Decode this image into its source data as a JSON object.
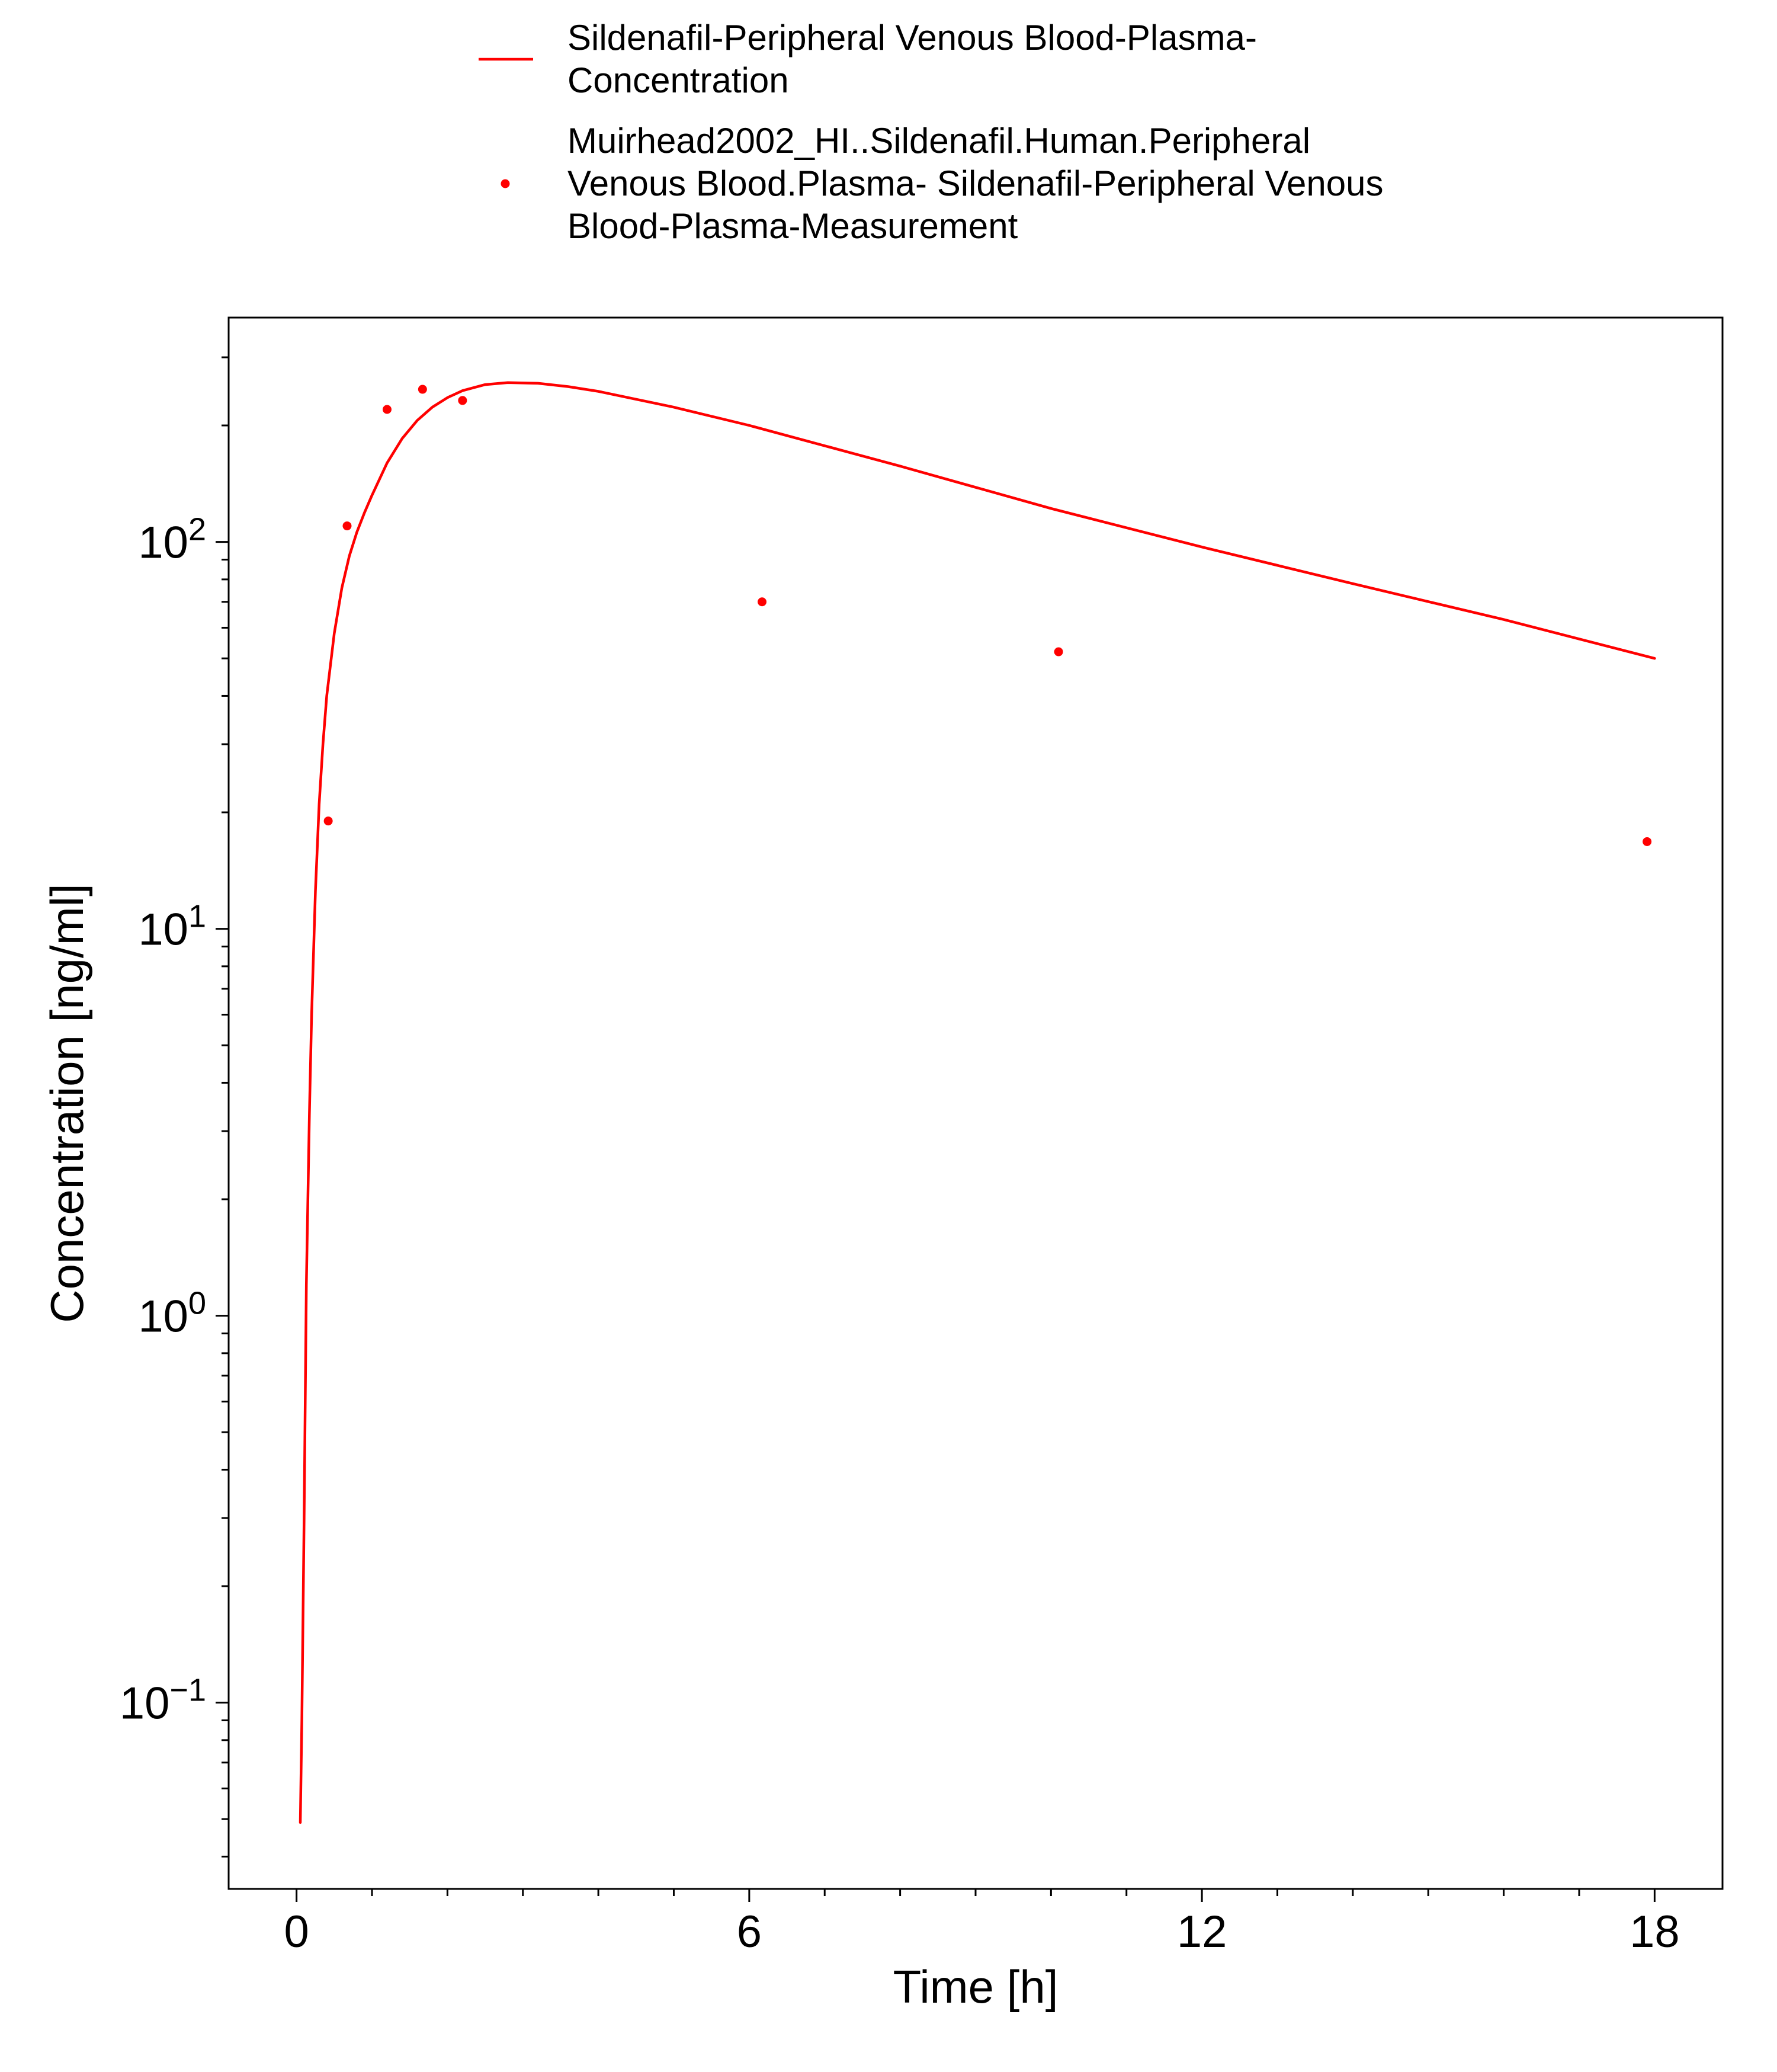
{
  "chart_data": {
    "type": "line",
    "xlabel": "Time [h]",
    "ylabel": "Concentration [ng/ml]",
    "xlim": [
      -0.9,
      18.9
    ],
    "ylim": [
      0.033,
      380
    ],
    "yscale": "log",
    "x_ticks": [
      0,
      6,
      12,
      18
    ],
    "x_tick_labels": [
      "0",
      "6",
      "12",
      "18"
    ],
    "y_ticks": [
      0.1,
      1,
      10,
      100
    ],
    "y_tick_labels": [
      {
        "base": "10",
        "exp": "−1"
      },
      {
        "base": "10",
        "exp": "0"
      },
      {
        "base": "10",
        "exp": "1"
      },
      {
        "base": "10",
        "exp": "2"
      }
    ],
    "grid": false,
    "legend_position": "top",
    "series": [
      {
        "name": "Sildenafil-Peripheral Venous Blood-Plasma-Concentration",
        "legend_lines": [
          "Sildenafil-Peripheral Venous Blood-Plasma-",
          "Concentration"
        ],
        "kind": "line",
        "color": "#ff0000",
        "x": [
          0.05,
          0.07,
          0.1,
          0.13,
          0.17,
          0.2,
          0.25,
          0.3,
          0.35,
          0.4,
          0.5,
          0.6,
          0.7,
          0.8,
          0.9,
          1.0,
          1.2,
          1.4,
          1.6,
          1.8,
          2.0,
          2.2,
          2.5,
          2.8,
          3.2,
          3.6,
          4.0,
          5.0,
          6.0,
          8.0,
          10.0,
          12.0,
          14.0,
          16.0,
          18.0
        ],
        "y": [
          0.049,
          0.09,
          0.3,
          1.2,
          3.3,
          6.0,
          12.5,
          21.0,
          30.0,
          40.0,
          58.0,
          76.0,
          92.0,
          106.0,
          119.0,
          132.0,
          160.0,
          185.0,
          206.0,
          223.0,
          236.0,
          246.0,
          255.0,
          258.0,
          257.0,
          252.0,
          245.0,
          223.0,
          200.0,
          157.0,
          122.0,
          97.0,
          78.0,
          63.0,
          50.0
        ]
      },
      {
        "name": "Muirhead2002_HI..Sildenafil.Human.Peripheral Venous Blood.Plasma- Sildenafil-Peripheral Venous Blood-Plasma-Measurement",
        "legend_lines": [
          "Muirhead2002_HI..Sildenafil.Human.Peripheral",
          "Venous Blood.Plasma- Sildenafil-Peripheral Venous",
          "Blood-Plasma-Measurement"
        ],
        "kind": "scatter",
        "color": "#ff0000",
        "x": [
          0.42,
          0.67,
          1.2,
          1.67,
          2.2,
          6.17,
          10.1,
          17.9
        ],
        "y": [
          19.0,
          110.0,
          220.0,
          248.0,
          232.0,
          70.0,
          52.0,
          16.8
        ]
      }
    ]
  }
}
